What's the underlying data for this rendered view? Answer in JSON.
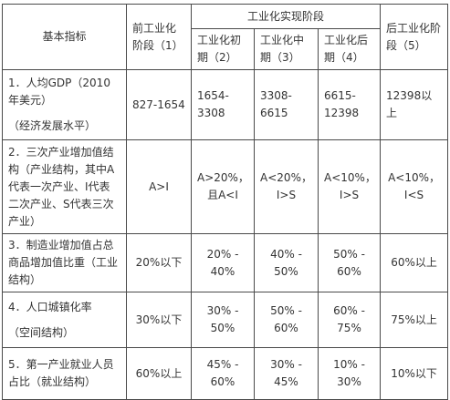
{
  "header": {
    "basic_indicator": "基本指标",
    "pre_industrial": "前工业化阶段（1）",
    "realization_stage": "工业化实现阶段",
    "early": "工业化初期（2）",
    "middle": "工业化中期（3）",
    "late": "工业化后期（4）",
    "post_industrial": "后工业化阶段（5）"
  },
  "rows": [
    {
      "indicator_main": "1．人均GDP（2010年美元）",
      "indicator_sub": "（经济发展水平）",
      "c1": "827-1654",
      "c2": "1654-3308",
      "c3": "3308-6615",
      "c4": "6615-12398",
      "c5": "12398以上"
    },
    {
      "indicator_main": "2．三次产业增加值结构（产业结构，其中A代表一次产业、I代表二次产业、S代表三次产业）",
      "c1": "A>I",
      "c2_a": "A>20%，",
      "c2_b": "且A<I",
      "c3_a": "A<20%，",
      "c3_b": "I>S",
      "c4_a": "A<10%，",
      "c4_b": "I>S",
      "c5_a": "A<10%，",
      "c5_b": "I<S"
    },
    {
      "indicator_main": "3．制造业增加值占总商品增加值比重（工业结构）",
      "c1": "20%以下",
      "c2_a": "20% -",
      "c2_b": "40%",
      "c3_a": "40% -",
      "c3_b": "50%",
      "c4_a": "50% -",
      "c4_b": "60%",
      "c5": "60%以上"
    },
    {
      "indicator_main": "4．人口城镇化率",
      "indicator_sub": "（空间结构）",
      "c1": "30%以下",
      "c2_a": "30% -",
      "c2_b": "50%",
      "c3_a": "50% -",
      "c3_b": "60%",
      "c4_a": "60% -",
      "c4_b": "75%",
      "c5": "75%以上"
    },
    {
      "indicator_main": "5．第一产业就业人员占比（就业结构）",
      "c1": "60%以上",
      "c2_a": "45% -",
      "c2_b": "60%",
      "c3_a": "30% -",
      "c3_b": "45%",
      "c4_a": "10% -",
      "c4_b": "30%",
      "c5": "10%以下"
    }
  ]
}
